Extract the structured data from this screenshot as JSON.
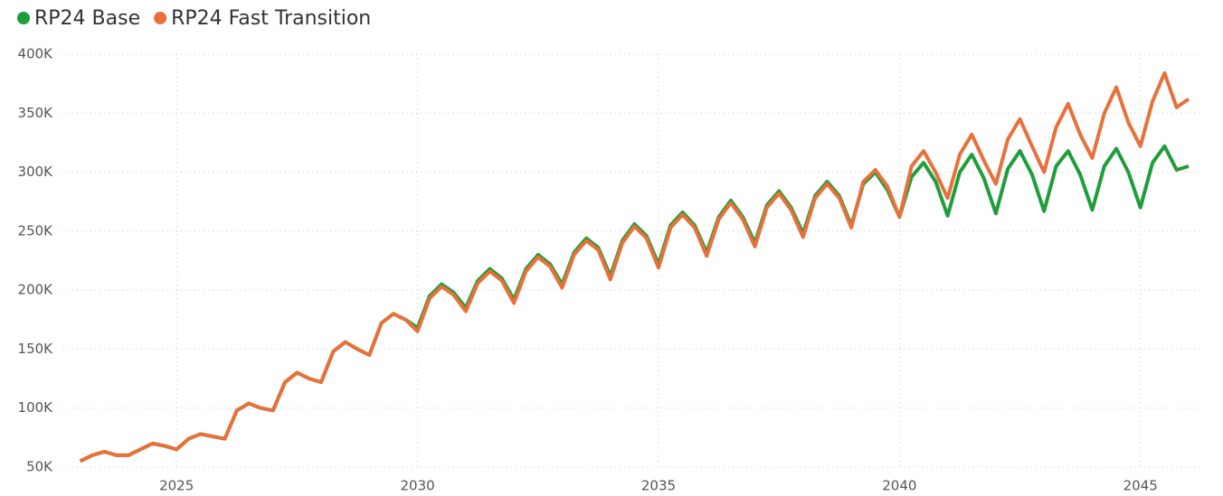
{
  "chart_data": {
    "type": "line",
    "x": [
      2023,
      2023.25,
      2023.5,
      2023.75,
      2024,
      2024.25,
      2024.5,
      2024.75,
      2025,
      2025.25,
      2025.5,
      2025.75,
      2026,
      2026.25,
      2026.5,
      2026.75,
      2027,
      2027.25,
      2027.5,
      2027.75,
      2028,
      2028.25,
      2028.5,
      2028.75,
      2029,
      2029.25,
      2029.5,
      2029.75,
      2030,
      2030.25,
      2030.5,
      2030.75,
      2031,
      2031.25,
      2031.5,
      2031.75,
      2032,
      2032.25,
      2032.5,
      2032.75,
      2033,
      2033.25,
      2033.5,
      2033.75,
      2034,
      2034.25,
      2034.5,
      2034.75,
      2035,
      2035.25,
      2035.5,
      2035.75,
      2036,
      2036.25,
      2036.5,
      2036.75,
      2037,
      2037.25,
      2037.5,
      2037.75,
      2038,
      2038.25,
      2038.5,
      2038.75,
      2039,
      2039.25,
      2039.5,
      2039.75,
      2040,
      2040.25,
      2040.5,
      2040.75,
      2041,
      2041.25,
      2041.5,
      2041.75,
      2042,
      2042.25,
      2042.5,
      2042.75,
      2043,
      2043.25,
      2043.5,
      2043.75,
      2044,
      2044.25,
      2044.5,
      2044.75,
      2045,
      2045.25,
      2045.5,
      2045.75,
      2046
    ],
    "series": [
      {
        "name": "RP24 Base",
        "color": "#1e9e3a",
        "values": [
          55000,
          60000,
          63000,
          60000,
          60000,
          65000,
          70000,
          68000,
          65000,
          74000,
          78000,
          76000,
          74000,
          98000,
          104000,
          100000,
          98000,
          122000,
          130000,
          125000,
          122000,
          148000,
          156000,
          150000,
          145000,
          172000,
          180000,
          175000,
          168000,
          195000,
          205000,
          198000,
          185000,
          208000,
          218000,
          210000,
          192000,
          218000,
          230000,
          222000,
          205000,
          232000,
          244000,
          236000,
          212000,
          242000,
          256000,
          246000,
          222000,
          255000,
          266000,
          255000,
          232000,
          262000,
          276000,
          262000,
          240000,
          272000,
          284000,
          270000,
          248000,
          280000,
          292000,
          280000,
          255000,
          290000,
          300000,
          285000,
          262000,
          296000,
          308000,
          292000,
          263000,
          300000,
          315000,
          295000,
          265000,
          303000,
          318000,
          298000,
          267000,
          305000,
          318000,
          298000,
          268000,
          305000,
          320000,
          300000,
          270000,
          308000,
          322000,
          302000,
          305000
        ]
      },
      {
        "name": "RP24 Fast Transition",
        "color": "#e8703a",
        "values": [
          55000,
          60000,
          63000,
          60000,
          60000,
          65000,
          70000,
          68000,
          65000,
          74000,
          78000,
          76000,
          74000,
          98000,
          104000,
          100000,
          98000,
          122000,
          130000,
          125000,
          122000,
          148000,
          156000,
          150000,
          145000,
          172000,
          180000,
          175000,
          165000,
          193000,
          203000,
          196000,
          182000,
          206000,
          216000,
          208000,
          189000,
          216000,
          228000,
          220000,
          202000,
          230000,
          242000,
          234000,
          209000,
          240000,
          254000,
          244000,
          219000,
          253000,
          264000,
          253000,
          229000,
          260000,
          274000,
          260000,
          237000,
          270000,
          282000,
          268000,
          245000,
          278000,
          290000,
          278000,
          253000,
          292000,
          302000,
          288000,
          262000,
          305000,
          318000,
          300000,
          278000,
          315000,
          332000,
          310000,
          290000,
          328000,
          345000,
          322000,
          300000,
          338000,
          358000,
          332000,
          312000,
          350000,
          372000,
          342000,
          322000,
          360000,
          384000,
          355000,
          362000
        ]
      }
    ],
    "xlim": [
      2022.65,
      2046.3
    ],
    "xticks": [
      2025,
      2030,
      2035,
      2040,
      2045
    ],
    "ylim": [
      50000,
      400000
    ],
    "yticks": [
      {
        "value": 50000,
        "label": "50K"
      },
      {
        "value": 100000,
        "label": "100K"
      },
      {
        "value": 150000,
        "label": "150K"
      },
      {
        "value": 200000,
        "label": "200K"
      },
      {
        "value": 250000,
        "label": "250K"
      },
      {
        "value": 300000,
        "label": "300K"
      },
      {
        "value": 350000,
        "label": "350K"
      },
      {
        "value": 400000,
        "label": "400K"
      }
    ],
    "grid": true,
    "legend": "top-left"
  }
}
